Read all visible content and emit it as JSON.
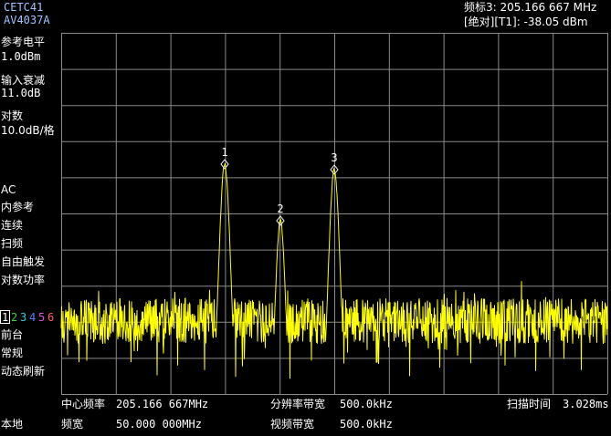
{
  "header": {
    "model": [
      "CETC41",
      "AV4037A"
    ],
    "marker_readout": [
      "频标3: 205.166 667 MHz",
      "[绝对][T1]: -38.05 dBm"
    ]
  },
  "sidebar": {
    "ref_level": {
      "label": "参考电平",
      "value": "1.0dBm"
    },
    "attenuation": {
      "label": "输入衰减",
      "value": "11.0dB"
    },
    "scale": {
      "label": "对数",
      "value": "10.0dB/格"
    },
    "modes": [
      "AC",
      "内参考",
      "连续",
      "扫频",
      "自由触发",
      "对数功率"
    ],
    "traces": [
      "1",
      "2",
      "3",
      "4",
      "5",
      "6"
    ],
    "trace_modes": [
      "前台",
      "常规",
      "动态刷新"
    ],
    "local": "本地"
  },
  "markers": [
    "1",
    "2",
    "3"
  ],
  "footer": {
    "center_freq": {
      "label": "中心频率",
      "value": "205.166 667MHz"
    },
    "rbw": {
      "label": "分辨率带宽",
      "value": "500.0kHz"
    },
    "sweep_time": {
      "label": "扫描时间",
      "value": "3.028ms"
    },
    "span": {
      "label": "频宽",
      "value": "50.000 000MHz"
    },
    "vbw": {
      "label": "视频带宽",
      "value": "500.0kHz"
    }
  }
}
